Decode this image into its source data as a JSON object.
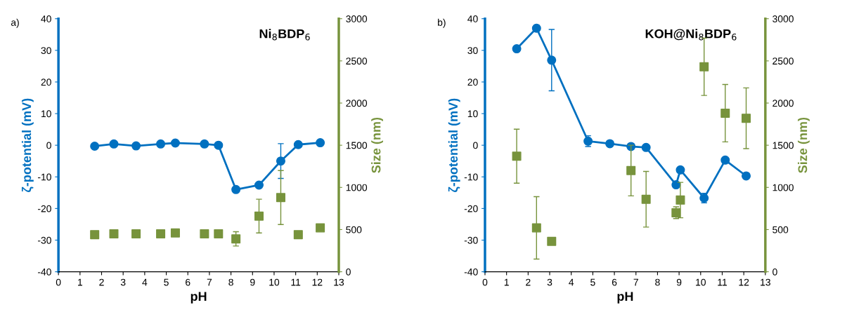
{
  "chart_data": [
    {
      "type": "line",
      "title": "Ni$_{8}$BDP$_{6}$",
      "xlabel": "pH",
      "ylabel": "ζ-potential (mV)",
      "y2label": "Size (nm)",
      "annotations": [
        "a)"
      ],
      "xlim": [
        0,
        13
      ],
      "xticks": [
        0,
        1,
        2,
        3,
        4,
        5,
        6,
        7,
        8,
        9,
        10,
        11,
        12,
        13
      ],
      "ylim": [
        -40,
        40
      ],
      "yticks": [
        -40,
        -30,
        -20,
        -10,
        0,
        10,
        20,
        30,
        40
      ],
      "y2lim": [
        0,
        3000
      ],
      "y2ticks": [
        0,
        500,
        1000,
        1500,
        2000,
        2500,
        3000
      ],
      "grid": false,
      "series": [
        {
          "marker": "circle",
          "color": "#0070c0",
          "x": [
            1.68,
            2.57,
            3.6,
            4.74,
            5.42,
            6.77,
            7.42,
            8.23,
            9.3,
            10.31,
            11.12,
            12.14
          ],
          "values": [
            -0.3,
            0.4,
            -0.2,
            0.4,
            0.7,
            0.4,
            0,
            -14,
            -12.6,
            -5,
            0.2,
            0.8
          ],
          "errors": [
            null,
            null,
            null,
            null,
            null,
            null,
            null,
            null,
            null,
            5.5,
            0.8,
            null
          ]
        },
        {
          "type": "scatter",
          "marker": "square",
          "axis": "y2",
          "color": "#77933c",
          "x": [
            1.68,
            2.57,
            3.6,
            4.74,
            5.42,
            6.77,
            7.42,
            8.23,
            9.3,
            10.31,
            11.12,
            12.14
          ],
          "values": [
            440,
            450,
            450,
            450,
            460,
            450,
            450,
            390,
            660,
            880,
            440,
            520
          ],
          "errors": [
            null,
            null,
            null,
            null,
            null,
            null,
            null,
            85,
            200,
            320,
            null,
            null
          ]
        }
      ]
    },
    {
      "type": "line",
      "title": "KOH@Ni$_{8}$BDP$_{6}$",
      "xlabel": "pH",
      "ylabel": "ζ-potential (mV)",
      "y2label": "Size (nm)",
      "annotations": [
        "b)"
      ],
      "xlim": [
        0,
        13
      ],
      "xticks": [
        0,
        1,
        2,
        3,
        4,
        5,
        6,
        7,
        8,
        9,
        10,
        11,
        12,
        13
      ],
      "ylim": [
        -40,
        40
      ],
      "yticks": [
        -40,
        -30,
        -20,
        -10,
        0,
        10,
        20,
        30,
        40
      ],
      "y2lim": [
        0,
        3000
      ],
      "y2ticks": [
        0,
        500,
        1000,
        1500,
        2000,
        2500,
        3000
      ],
      "grid": false,
      "series": [
        {
          "marker": "circle",
          "color": "#0070c0",
          "x": [
            1.47,
            2.39,
            3.09,
            4.78,
            5.79,
            6.77,
            7.47,
            8.86,
            9.06,
            10.16,
            11.14,
            12.11
          ],
          "values": [
            30.5,
            37,
            26.9,
            1.3,
            0.5,
            -0.4,
            -0.7,
            -12.5,
            -7.8,
            -16.7,
            -4.7,
            -9.7
          ],
          "errors": [
            null,
            1,
            9.7,
            1.7,
            null,
            null,
            null,
            null,
            null,
            1.5,
            null,
            null
          ]
        },
        {
          "type": "scatter",
          "marker": "square",
          "axis": "y2",
          "color": "#77933c",
          "x": [
            1.47,
            2.39,
            3.09,
            6.77,
            7.47,
            8.86,
            9.06,
            10.16,
            11.14,
            12.11
          ],
          "values": [
            1370,
            520,
            360,
            1200,
            860,
            700,
            850,
            2430,
            1880,
            1820
          ],
          "errors": [
            320,
            370,
            null,
            300,
            330,
            70,
            210,
            340,
            340,
            360
          ]
        }
      ]
    }
  ]
}
